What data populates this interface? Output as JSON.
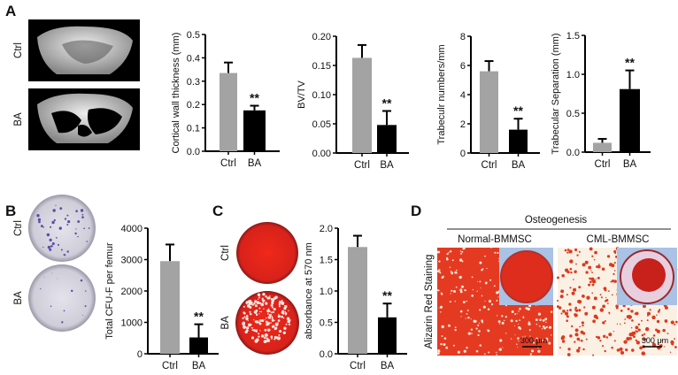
{
  "panels": {
    "A": "A",
    "B": "B",
    "C": "C",
    "D": "D"
  },
  "image_labels": {
    "A": [
      "Ctrl",
      "BA"
    ],
    "B": [
      "Ctrl",
      "BA"
    ],
    "C": [
      "Ctrl",
      "BA"
    ]
  },
  "panel_d": {
    "header": "Osteogenesis",
    "columns": [
      "Normal-BMMSC",
      "CML-BMMSC"
    ],
    "row_label": "Alizarin Red Staining",
    "scale_bar": "300 μm"
  },
  "colors": {
    "ctrl": "#a3a3a3",
    "ba": "#000000",
    "stain_red": "#e8301e",
    "stain_purple": "#5a4fa8"
  },
  "chart_data": [
    {
      "type": "bar",
      "panel": "A",
      "categories": [
        "Ctrl",
        "BA"
      ],
      "values": [
        0.335,
        0.175
      ],
      "errors": [
        0.045,
        0.02
      ],
      "significance": [
        "",
        "**"
      ],
      "ylabel": "Cortical wall thickness (mm)",
      "ylim": [
        0,
        0.5
      ],
      "yticks": [
        "0.0",
        "0.1",
        "0.2",
        "0.3",
        "0.4",
        "0.5"
      ],
      "grid": false
    },
    {
      "type": "bar",
      "panel": "A",
      "categories": [
        "Ctrl",
        "BA"
      ],
      "values": [
        0.163,
        0.048
      ],
      "errors": [
        0.022,
        0.024
      ],
      "significance": [
        "",
        "**"
      ],
      "ylabel": "BV/TV",
      "ylim": [
        0,
        0.2
      ],
      "yticks": [
        "0.00",
        "0.05",
        "0.10",
        "0.15",
        "0.20"
      ],
      "grid": false
    },
    {
      "type": "bar",
      "panel": "A",
      "categories": [
        "Ctrl",
        "BA"
      ],
      "values": [
        5.6,
        1.6
      ],
      "errors": [
        0.7,
        0.75
      ],
      "significance": [
        "",
        "**"
      ],
      "ylabel": "Trabeculr numbers/mm",
      "ylim": [
        0,
        8
      ],
      "yticks": [
        "0",
        "2",
        "4",
        "6",
        "8"
      ],
      "grid": false
    },
    {
      "type": "bar",
      "panel": "A",
      "categories": [
        "Ctrl",
        "BA"
      ],
      "values": [
        0.12,
        0.81
      ],
      "errors": [
        0.05,
        0.24
      ],
      "significance": [
        "",
        "**"
      ],
      "ylabel": "Trabecular Separation (mm)",
      "ylim": [
        0,
        1.5
      ],
      "yticks": [
        "0.0",
        "0.5",
        "1.0",
        "1.5"
      ],
      "grid": false
    },
    {
      "type": "bar",
      "panel": "B",
      "categories": [
        "Ctrl",
        "BA"
      ],
      "values": [
        2950,
        520
      ],
      "errors": [
        530,
        420
      ],
      "significance": [
        "",
        "**"
      ],
      "ylabel": "Total CFU-F per femur",
      "ylim": [
        0,
        4000
      ],
      "yticks": [
        "0",
        "1000",
        "2000",
        "3000",
        "4000"
      ],
      "grid": false
    },
    {
      "type": "bar",
      "panel": "C",
      "categories": [
        "Ctrl",
        "BA"
      ],
      "values": [
        1.7,
        0.58
      ],
      "errors": [
        0.18,
        0.22
      ],
      "significance": [
        "",
        "**"
      ],
      "ylabel": "absorbance at 570 nm",
      "ylim": [
        0,
        2.0
      ],
      "yticks": [
        "0.0",
        "0.5",
        "1.0",
        "1.5",
        "2.0"
      ],
      "grid": false
    }
  ]
}
